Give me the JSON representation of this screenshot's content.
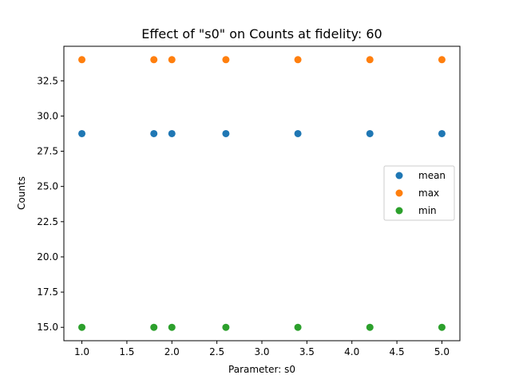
{
  "chart_data": {
    "type": "scatter",
    "title": "Effect of \"s0\" on Counts at fidelity: 60",
    "xlabel": "Parameter: s0",
    "ylabel": "Counts",
    "xlim": [
      0.8,
      5.2
    ],
    "ylim": [
      14.05,
      34.95
    ],
    "xticks": [
      1.0,
      1.5,
      2.0,
      2.5,
      3.0,
      3.5,
      4.0,
      4.5,
      5.0
    ],
    "xtick_labels": [
      "1.0",
      "1.5",
      "2.0",
      "2.5",
      "3.0",
      "3.5",
      "4.0",
      "4.5",
      "5.0"
    ],
    "yticks": [
      15.0,
      17.5,
      20.0,
      22.5,
      25.0,
      27.5,
      30.0,
      32.5
    ],
    "ytick_labels": [
      "15.0",
      "17.5",
      "20.0",
      "22.5",
      "25.0",
      "27.5",
      "30.0",
      "32.5"
    ],
    "grid": false,
    "legend_position": "center-right",
    "x": [
      1.0,
      1.8,
      2.0,
      2.6,
      3.4,
      4.2,
      5.0
    ],
    "series": [
      {
        "name": "mean",
        "color": "#1f77b4",
        "values": [
          28.75,
          28.75,
          28.75,
          28.75,
          28.75,
          28.75,
          28.75
        ]
      },
      {
        "name": "max",
        "color": "#ff7f0e",
        "values": [
          34.0,
          34.0,
          34.0,
          34.0,
          34.0,
          34.0,
          34.0
        ]
      },
      {
        "name": "min",
        "color": "#2ca02c",
        "values": [
          15.0,
          15.0,
          15.0,
          15.0,
          15.0,
          15.0,
          15.0
        ]
      }
    ]
  }
}
